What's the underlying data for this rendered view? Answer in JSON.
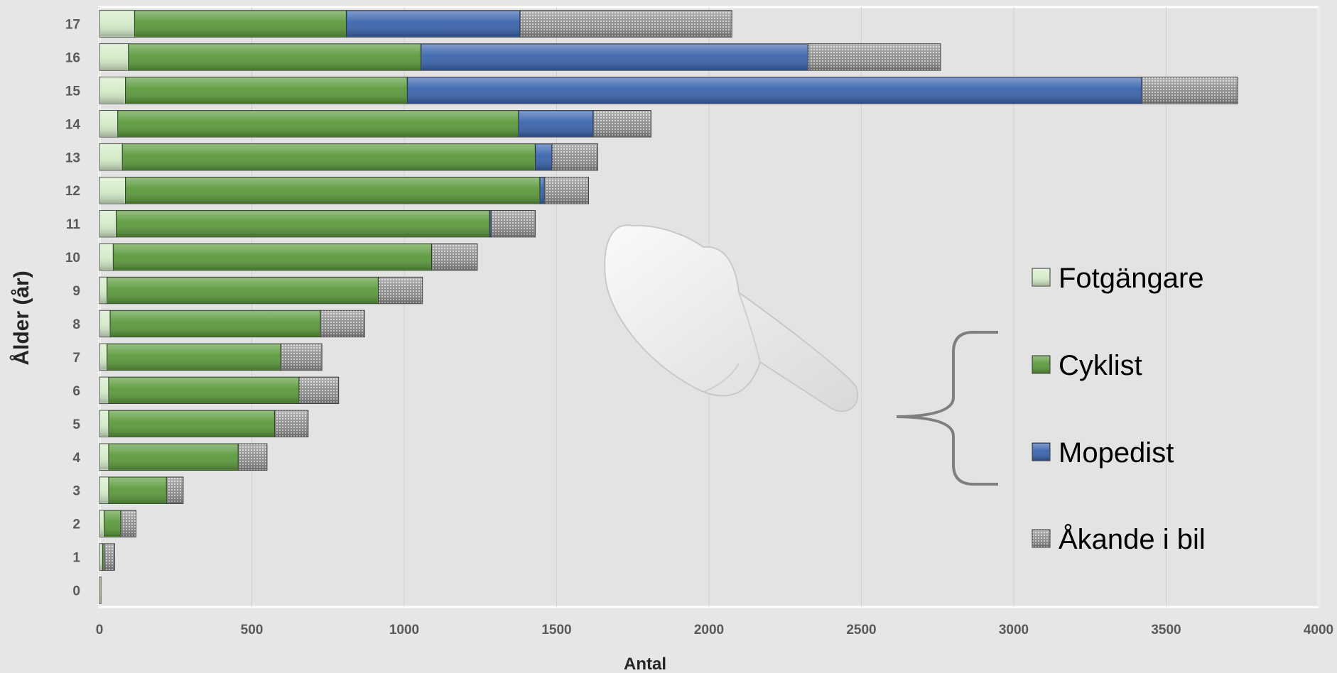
{
  "chart_data": {
    "type": "bar",
    "orientation": "horizontal",
    "stacked": true,
    "categories": [
      "0",
      "1",
      "2",
      "3",
      "4",
      "5",
      "6",
      "7",
      "8",
      "9",
      "10",
      "11",
      "12",
      "13",
      "14",
      "15",
      "16",
      "17"
    ],
    "series": [
      {
        "name": "Fotgängare",
        "color": "#d4ecc9",
        "pattern": "none",
        "values": [
          5,
          10,
          15,
          30,
          30,
          30,
          30,
          25,
          35,
          25,
          45,
          55,
          85,
          75,
          60,
          85,
          95,
          115
        ]
      },
      {
        "name": "Cyklist",
        "color": "#5b9a3c",
        "pattern": "none",
        "values": [
          0,
          5,
          55,
          190,
          425,
          545,
          625,
          570,
          690,
          890,
          1045,
          1225,
          1360,
          1355,
          1315,
          925,
          960,
          695
        ]
      },
      {
        "name": "Mopedist",
        "color": "#3a64ad",
        "pattern": "none",
        "values": [
          0,
          0,
          0,
          0,
          0,
          0,
          0,
          0,
          0,
          0,
          0,
          5,
          15,
          55,
          245,
          2410,
          1270,
          570
        ]
      },
      {
        "name": "Åkande i bil",
        "color": "#9a9a9a",
        "pattern": "dots",
        "values": [
          0,
          35,
          50,
          55,
          95,
          110,
          130,
          135,
          145,
          145,
          150,
          145,
          145,
          150,
          190,
          315,
          435,
          695
        ]
      }
    ],
    "xlabel": "Antal",
    "ylabel": "Ålder (år)",
    "xlim": [
      0,
      4000
    ],
    "xticks": [
      0,
      500,
      1000,
      1500,
      2000,
      2500,
      3000,
      3500,
      4000
    ],
    "grid": "vertical",
    "legend": "right"
  }
}
